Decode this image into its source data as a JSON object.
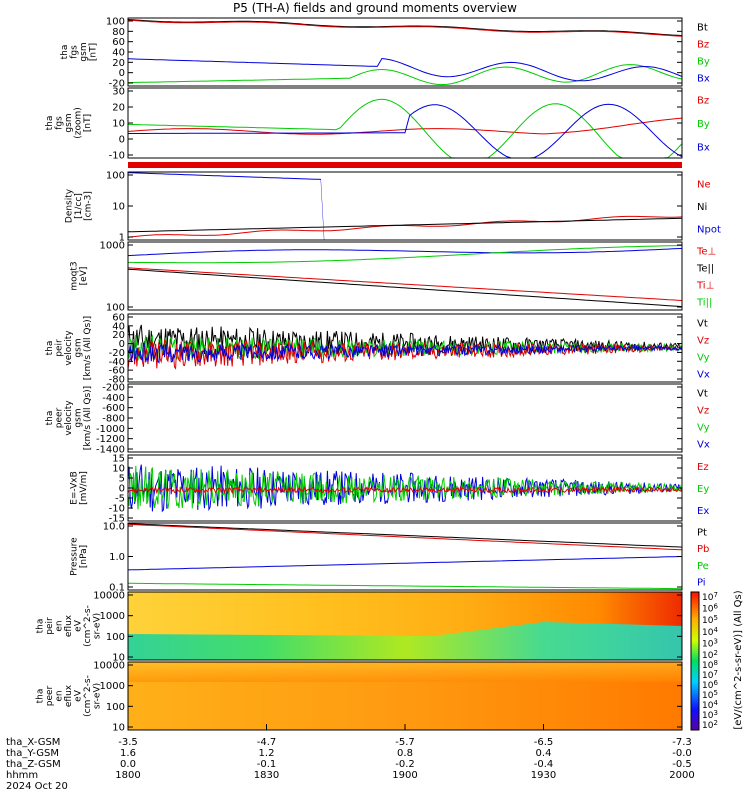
{
  "title": "P5 (TH-A) fields and ground moments overview",
  "colors": {
    "black": "#000000",
    "red": "#e00000",
    "green": "#00cc00",
    "blue": "#0000dd"
  },
  "panels": [
    {
      "key": "fgs_gsm",
      "ylabel": [
        "tha",
        "fgs",
        "gsm",
        "[nT]"
      ],
      "yticks": [
        "100",
        "80",
        "60",
        "40",
        "20",
        "0",
        "-20"
      ],
      "ylim": [
        -25,
        100
      ],
      "legend": [
        {
          "name": "Bt",
          "color": "black"
        },
        {
          "name": "Bz",
          "color": "red"
        },
        {
          "name": "By",
          "color": "green"
        },
        {
          "name": "Bx",
          "color": "blue"
        }
      ]
    },
    {
      "key": "fgs_dsl",
      "ylabel": [
        "tha",
        "fgs",
        "gsm",
        "(zoom)",
        "[nT]"
      ],
      "yticks": [
        "30",
        "20",
        "10",
        "0",
        "-10"
      ],
      "ylim": [
        -17,
        33
      ],
      "legend": [
        {
          "name": "Bz",
          "color": "red"
        },
        {
          "name": "By",
          "color": "green"
        },
        {
          "name": "Bx",
          "color": "blue"
        }
      ]
    },
    {
      "key": "density",
      "ylabel": [
        "Density",
        "[1/cc]",
        "[cm-3]"
      ],
      "yticks": [
        "100",
        "10",
        "1"
      ],
      "log": true,
      "legend": [
        {
          "name": "Ne",
          "color": "red"
        },
        {
          "name": "Ni",
          "color": "black"
        },
        {
          "name": "Npot",
          "color": "blue"
        }
      ]
    },
    {
      "key": "temperature",
      "ylabel": [
        "moqt3",
        "[eV]"
      ],
      "yticks": [
        "1000",
        "100"
      ],
      "log": true,
      "legend": [
        {
          "name": "Te⊥",
          "color": "red"
        },
        {
          "name": "Te||",
          "color": "black"
        },
        {
          "name": "Ti⊥",
          "color": "red"
        },
        {
          "name": "Ti||",
          "color": "green"
        }
      ]
    },
    {
      "key": "peir_velocity",
      "ylabel": [
        "tha",
        "peir",
        "velocity",
        "gsm",
        "[km/s (All Qs)]"
      ],
      "yticks": [
        "60",
        "40",
        "20",
        "0",
        "-20",
        "-40",
        "-60",
        "-80"
      ],
      "ylim": [
        -80,
        65
      ],
      "legend": [
        {
          "name": "Vt",
          "color": "black"
        },
        {
          "name": "Vz",
          "color": "red"
        },
        {
          "name": "Vy",
          "color": "green"
        },
        {
          "name": "Vx",
          "color": "blue"
        }
      ]
    },
    {
      "key": "peer_velocity",
      "ylabel": [
        "tha",
        "peer",
        "velocity",
        "gsm",
        "[km/s (All Qs)]"
      ],
      "yticks": [
        "-200",
        "-400",
        "-600",
        "-800",
        "-1000",
        "-1200",
        "-1400"
      ],
      "ylim": [
        -1450,
        -100
      ],
      "legend": [
        {
          "name": "Vt",
          "color": "black"
        },
        {
          "name": "Vz",
          "color": "red"
        },
        {
          "name": "Vy",
          "color": "green"
        },
        {
          "name": "Vx",
          "color": "blue"
        }
      ]
    },
    {
      "key": "efield",
      "ylabel": [
        "E=-VxB",
        "[mV/m]"
      ],
      "yticks": [
        "15",
        "10",
        "5",
        "0",
        "-5",
        "-10",
        "-15"
      ],
      "ylim": [
        -15,
        17
      ],
      "legend": [
        {
          "name": "Ez",
          "color": "red"
        },
        {
          "name": "Ey",
          "color": "green"
        },
        {
          "name": "Ex",
          "color": "blue"
        }
      ]
    },
    {
      "key": "pressure",
      "ylabel": [
        "Pressure",
        "[nPa]"
      ],
      "yticks": [
        "10.0",
        "1.0",
        "0.1"
      ],
      "log": true,
      "legend": [
        {
          "name": "Pt",
          "color": "black"
        },
        {
          "name": "Pb",
          "color": "red"
        },
        {
          "name": "Pe",
          "color": "green"
        },
        {
          "name": "Pi",
          "color": "blue"
        }
      ]
    },
    {
      "key": "peir_spec",
      "ylabel": [
        "tha",
        "peir",
        "en",
        "eflux",
        "eV",
        "(cm^2-s-",
        "sr-eV)"
      ],
      "yticks": [
        "10000",
        "1000",
        "100",
        "10"
      ],
      "spectrogram": true
    },
    {
      "key": "peer_spec",
      "ylabel": [
        "tha",
        "peer",
        "en",
        "eflux",
        "eV",
        "(cm^2-s-",
        "sr-eV)"
      ],
      "yticks": [
        "10000",
        "1000",
        "100",
        "10"
      ],
      "spectrogram": true
    }
  ],
  "colorbar": {
    "ticks_top": [
      "10^7",
      "10^6",
      "10^5",
      "10^4",
      "10^3",
      "10^2"
    ],
    "ticks_bottom": [
      "10^8",
      "10^7",
      "10^6",
      "10^5",
      "10^4",
      "10^3",
      "10^2"
    ],
    "label": "[eV/(cm^2-s-sr-eV)] (All Qs)"
  },
  "x_axis": {
    "rows": [
      {
        "label": "tha_X-GSM",
        "values": [
          "-3.5",
          "-4.7",
          "-5.7",
          "-6.5",
          "-7.3"
        ]
      },
      {
        "label": "tha_Y-GSM",
        "values": [
          "1.6",
          "1.2",
          "0.8",
          "0.4",
          "-0.0"
        ]
      },
      {
        "label": "tha_Z-GSM",
        "values": [
          "0.0",
          "-0.1",
          "-0.2",
          "-0.4",
          "-0.5"
        ]
      },
      {
        "label": "hhmm",
        "values": [
          "1800",
          "1830",
          "1900",
          "1930",
          "2000"
        ]
      }
    ],
    "date": "2024 Oct 20"
  }
}
